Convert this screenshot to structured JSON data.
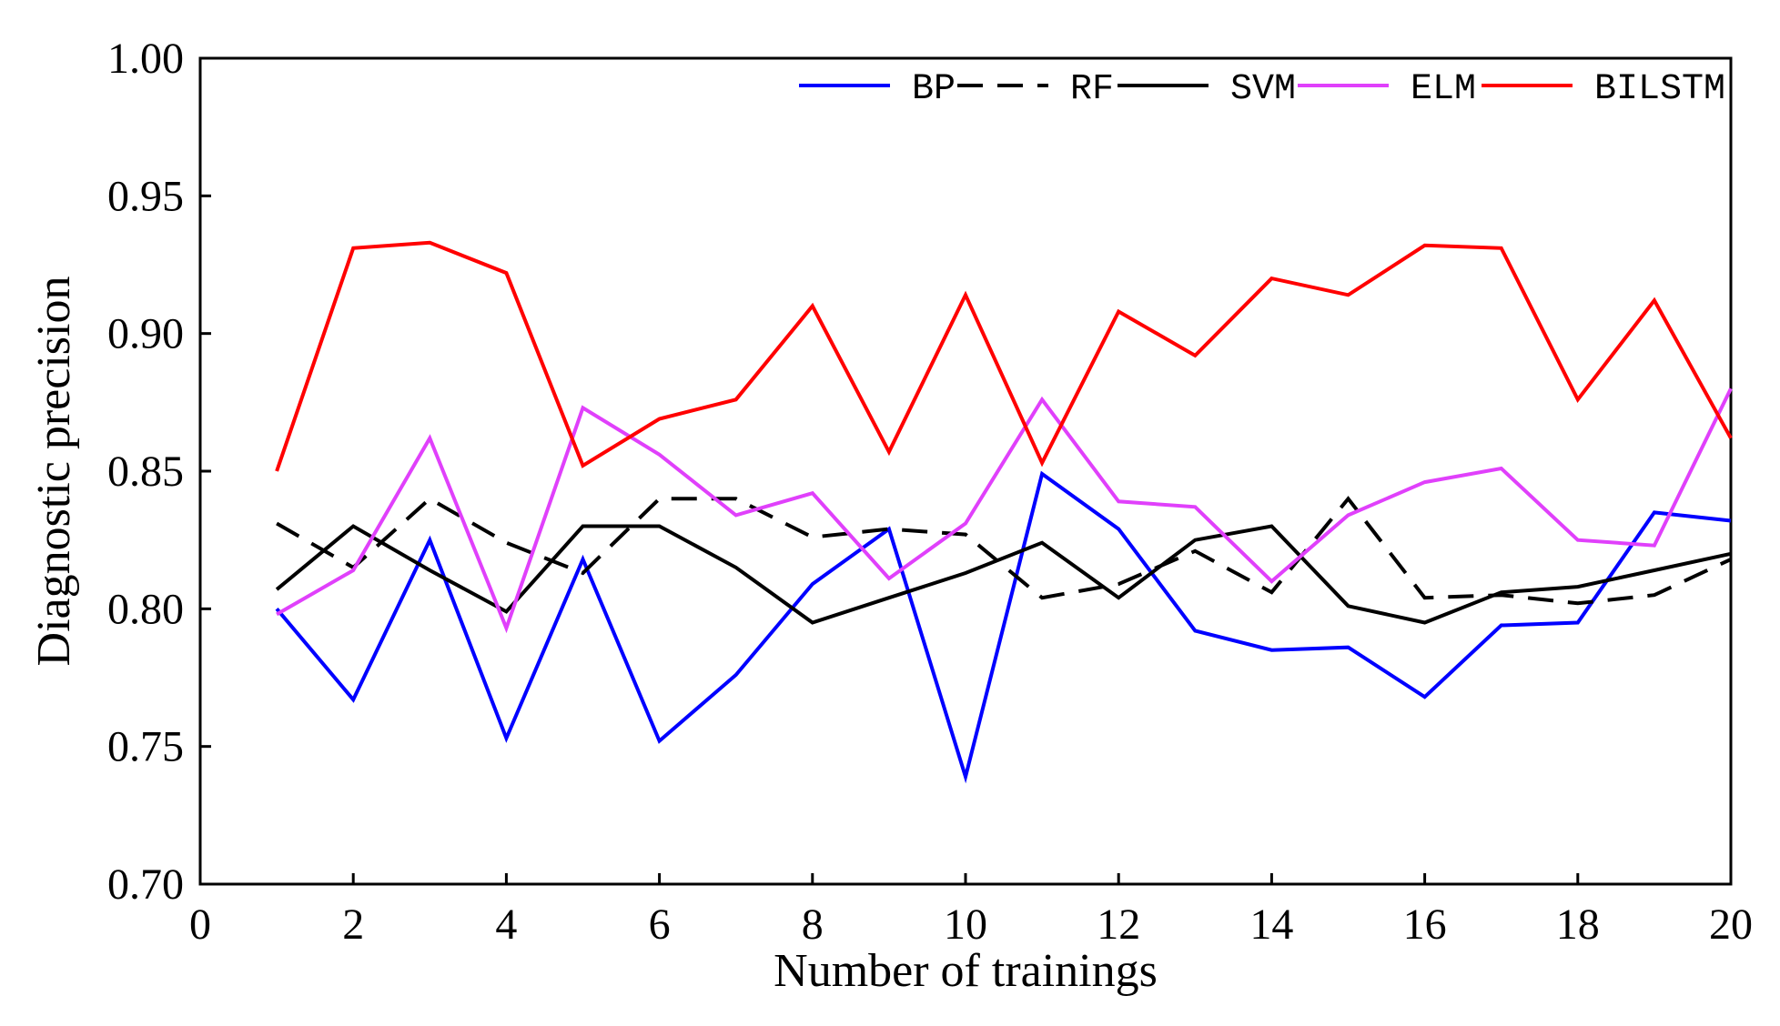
{
  "chart_data": {
    "type": "line",
    "title": "",
    "xlabel": "Number of trainings",
    "ylabel": "Diagnostic precision",
    "xlim": [
      0,
      20
    ],
    "ylim": [
      0.7,
      1.0
    ],
    "xticks": [
      "0",
      "2",
      "4",
      "6",
      "8",
      "10",
      "12",
      "14",
      "16",
      "18",
      "20"
    ],
    "yticks": [
      "0.70",
      "0.75",
      "0.80",
      "0.85",
      "0.90",
      "0.95",
      "1.00"
    ],
    "grid": false,
    "legend_position": "top",
    "x": [
      1,
      2,
      3,
      4,
      5,
      6,
      7,
      8,
      9,
      10,
      11,
      12,
      13,
      14,
      15,
      16,
      17,
      18,
      19,
      20
    ],
    "series": [
      {
        "name": "BP",
        "color": "#0000ff",
        "dash": "solid",
        "values": [
          0.8,
          0.767,
          0.825,
          0.753,
          0.818,
          0.752,
          0.776,
          0.809,
          0.829,
          0.739,
          0.849,
          0.829,
          0.792,
          0.785,
          0.786,
          0.768,
          0.794,
          0.795,
          0.835,
          0.832
        ]
      },
      {
        "name": "RF",
        "color": "#000000",
        "dash": "dashed",
        "values": [
          0.831,
          0.815,
          0.84,
          0.824,
          0.813,
          0.84,
          0.84,
          0.826,
          0.829,
          0.827,
          0.804,
          0.809,
          0.821,
          0.806,
          0.84,
          0.804,
          0.805,
          0.802,
          0.805,
          0.818
        ]
      },
      {
        "name": "SVM",
        "color": "#000000",
        "dash": "solid",
        "values": [
          0.807,
          0.83,
          0.814,
          0.799,
          0.83,
          0.83,
          0.815,
          0.795,
          0.804,
          0.813,
          0.824,
          0.804,
          0.825,
          0.83,
          0.801,
          0.795,
          0.806,
          0.808,
          0.814,
          0.82
        ]
      },
      {
        "name": "ELM",
        "color": "#e040fb",
        "dash": "solid",
        "values": [
          0.798,
          0.814,
          0.862,
          0.793,
          0.873,
          0.856,
          0.834,
          0.842,
          0.811,
          0.831,
          0.876,
          0.839,
          0.837,
          0.81,
          0.834,
          0.846,
          0.851,
          0.825,
          0.823,
          0.88
        ]
      },
      {
        "name": "BILSTM",
        "color": "#ff0000",
        "dash": "solid",
        "values": [
          0.85,
          0.931,
          0.933,
          0.922,
          0.852,
          0.869,
          0.876,
          0.91,
          0.857,
          0.914,
          0.853,
          0.908,
          0.892,
          0.92,
          0.914,
          0.932,
          0.931,
          0.876,
          0.912,
          0.862
        ]
      }
    ]
  }
}
